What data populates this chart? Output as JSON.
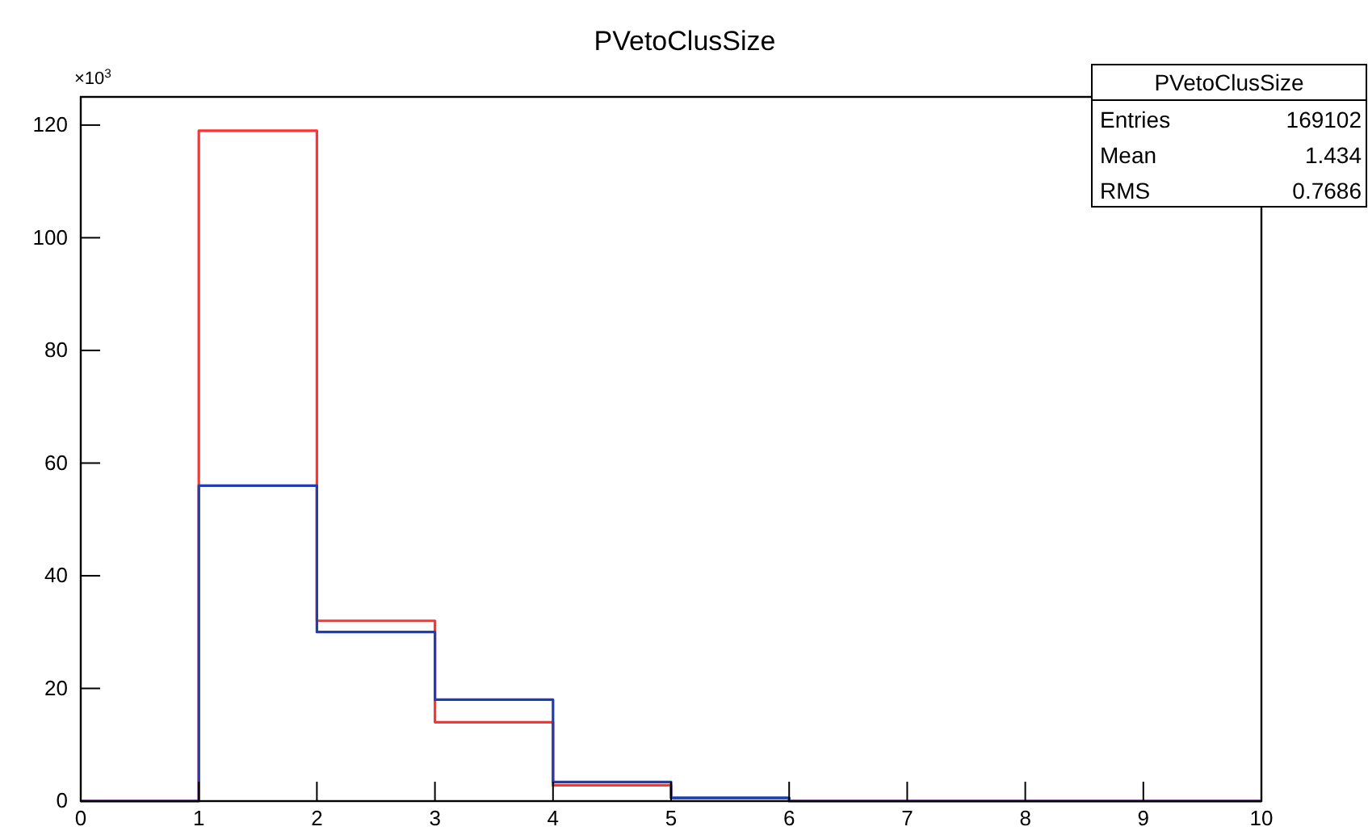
{
  "chart_data": {
    "type": "histogram",
    "title": "PVetoClusSize",
    "bins": [
      0,
      1,
      2,
      3,
      4,
      5,
      6,
      7,
      8,
      9,
      10
    ],
    "series": [
      {
        "color": "#ff3333",
        "values": [
          0,
          119,
          32,
          14,
          2.8,
          0.5,
          0,
          0,
          0,
          0
        ]
      },
      {
        "color": "#1f3fb0",
        "values": [
          0,
          56,
          30,
          18,
          3.4,
          0.6,
          0,
          0,
          0,
          0
        ]
      }
    ],
    "xlim": [
      0,
      10
    ],
    "xticks": [
      0,
      1,
      2,
      3,
      4,
      5,
      6,
      7,
      8,
      9,
      10
    ],
    "ylim": [
      0,
      125
    ],
    "yticks": [
      0,
      20,
      40,
      60,
      80,
      100,
      120
    ],
    "annotations": [
      "×10$^{3}$",
      "PVetoClusSize",
      "Entries",
      "169102",
      "Mean",
      "1.434",
      "RMS",
      "0.7686"
    ],
    "grid": false
  }
}
